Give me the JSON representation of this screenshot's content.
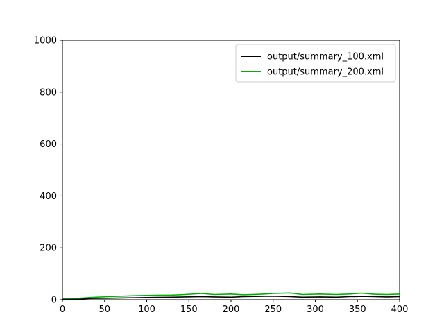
{
  "chart_data": {
    "type": "line",
    "title": "",
    "xlabel": "",
    "ylabel": "",
    "xlim": [
      0,
      400
    ],
    "ylim": [
      0,
      1000
    ],
    "x_ticks": [
      0,
      50,
      100,
      150,
      200,
      250,
      300,
      350,
      400
    ],
    "y_ticks": [
      0,
      200,
      400,
      600,
      800,
      1000
    ],
    "grid": false,
    "legend_position": "top-right",
    "series": [
      {
        "name": "output/summary_100.xml",
        "color": "#000000",
        "x": [
          0,
          20,
          35,
          55,
          70,
          90,
          110,
          130,
          145,
          165,
          180,
          200,
          215,
          235,
          250,
          270,
          285,
          305,
          325,
          340,
          355,
          370,
          385,
          400
        ],
        "y": [
          3,
          3,
          5,
          6,
          7,
          8,
          9,
          10,
          11,
          12,
          11,
          10,
          12,
          13,
          14,
          12,
          10,
          11,
          10,
          12,
          13,
          12,
          11,
          12
        ]
      },
      {
        "name": "output/summary_200.xml",
        "color": "#00b000",
        "x": [
          0,
          20,
          35,
          55,
          70,
          90,
          110,
          130,
          145,
          165,
          180,
          200,
          215,
          235,
          250,
          270,
          285,
          305,
          325,
          340,
          355,
          370,
          385,
          400
        ],
        "y": [
          5,
          6,
          9,
          12,
          14,
          16,
          17,
          18,
          20,
          24,
          20,
          22,
          19,
          21,
          24,
          26,
          20,
          22,
          20,
          22,
          25,
          21,
          20,
          22
        ]
      }
    ]
  }
}
